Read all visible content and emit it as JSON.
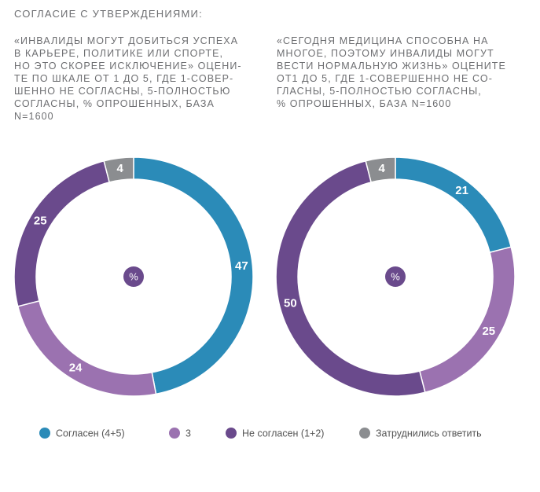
{
  "header": "СОГЛАСИЕ С УТВЕРЖДЕНИЯМИ:",
  "chart_data": [
    {
      "type": "pie",
      "title": [
        "«ИНВАЛИДЫ МОГУТ ДОБИТЬСЯ УСПЕХА",
        "В КАРЬЕРЕ, ПОЛИТИКЕ ИЛИ СПОРТЕ,",
        "НО ЭТО СКОРЕЕ ИСКЛЮЧЕНИЕ» ОЦЕНИ-",
        "ТЕ ПО ШКАЛЕ ОТ 1 ДО 5, ГДЕ 1-СОВЕР-",
        "ШЕННО НЕ СОГЛАСНЫ, 5-ПОЛНОСТЬЮ",
        "СОГЛАСНЫ, % ОПРОШЕННЫХ, БАЗА",
        "N=1600"
      ],
      "center_label": "%",
      "categories": [
        "Согласен (4+5)",
        "3",
        "Не согласен (1+2)",
        "Затруднились ответить"
      ],
      "values": [
        47,
        24,
        25,
        4
      ],
      "colors": [
        "#2b8bb8",
        "#9b72b0",
        "#6a4a8c",
        "#8b8d90"
      ]
    },
    {
      "type": "pie",
      "title": [
        "«СЕГОДНЯ МЕДИЦИНА СПОСОБНА НА",
        "МНОГОЕ, ПОЭТОМУ ИНВАЛИДЫ МОГУТ",
        "ВЕСТИ НОРМАЛЬНУЮ ЖИЗНЬ» ОЦЕНИТЕ",
        "ОТ1 ДО 5, ГДЕ 1-СОВЕРШЕННО НЕ СО-",
        "ГЛАСНЫ, 5-ПОЛНОСТЬЮ СОГЛАСНЫ,",
        "% ОПРОШЕННЫХ, БАЗА N=1600"
      ],
      "center_label": "%",
      "categories": [
        "Согласен (4+5)",
        "3",
        "Не согласен (1+2)",
        "Затруднились ответить"
      ],
      "values": [
        21,
        25,
        50,
        4
      ],
      "colors": [
        "#2b8bb8",
        "#9b72b0",
        "#6a4a8c",
        "#8b8d90"
      ]
    }
  ]
}
